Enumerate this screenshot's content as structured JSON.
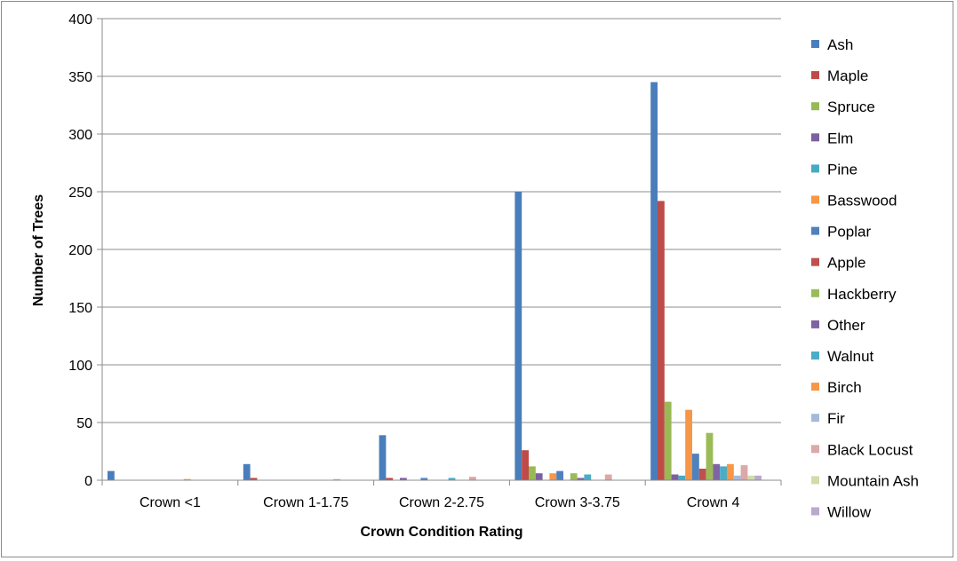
{
  "chart_data": {
    "type": "bar",
    "title": "",
    "xlabel": "Crown Condition Rating",
    "ylabel": "Number of Trees",
    "ylim": [
      0,
      400
    ],
    "yticks": [
      0,
      50,
      100,
      150,
      200,
      250,
      300,
      350,
      400
    ],
    "grid": true,
    "legend_position": "right",
    "categories": [
      "Crown <1",
      "Crown 1-1.75",
      "Crown 2-2.75",
      "Crown 3-3.75",
      "Crown 4"
    ],
    "series": [
      {
        "name": "Ash",
        "color": "#4a7ebb",
        "values": [
          8,
          14,
          39,
          250,
          345
        ]
      },
      {
        "name": "Maple",
        "color": "#be4b48",
        "values": [
          0,
          2,
          2,
          26,
          242
        ]
      },
      {
        "name": "Spruce",
        "color": "#98b954",
        "values": [
          0,
          0,
          0,
          12,
          68
        ]
      },
      {
        "name": "Elm",
        "color": "#7d60a0",
        "values": [
          0,
          0,
          2,
          6,
          5
        ]
      },
      {
        "name": "Pine",
        "color": "#46aac4",
        "values": [
          0,
          0,
          0,
          0,
          4
        ]
      },
      {
        "name": "Basswood",
        "color": "#f79646",
        "values": [
          0,
          0,
          0,
          6,
          61
        ]
      },
      {
        "name": "Poplar",
        "color": "#4f81bd",
        "values": [
          0,
          0,
          2,
          8,
          23
        ]
      },
      {
        "name": "Apple",
        "color": "#c0504d",
        "values": [
          0,
          0,
          0,
          0,
          10
        ]
      },
      {
        "name": "Hackberry",
        "color": "#9bbb59",
        "values": [
          0,
          0,
          0,
          6,
          41
        ]
      },
      {
        "name": "Other",
        "color": "#8064a2",
        "values": [
          0,
          0,
          0,
          2,
          14
        ]
      },
      {
        "name": "Walnut",
        "color": "#4bacc6",
        "values": [
          0,
          0,
          2,
          5,
          12
        ]
      },
      {
        "name": "Birch",
        "color": "#f79646",
        "values": [
          1,
          0,
          0,
          0,
          14
        ]
      },
      {
        "name": "Fir",
        "color": "#a5b9dc",
        "values": [
          0,
          0,
          0,
          0,
          4
        ]
      },
      {
        "name": "Black Locust",
        "color": "#dba9a7",
        "values": [
          0,
          1,
          3,
          5,
          13
        ]
      },
      {
        "name": "Mountain Ash",
        "color": "#cfdda9",
        "values": [
          0,
          0,
          0,
          0,
          4
        ]
      },
      {
        "name": "Willow",
        "color": "#b9aacb",
        "values": [
          0,
          0,
          0,
          0,
          4
        ]
      }
    ]
  }
}
